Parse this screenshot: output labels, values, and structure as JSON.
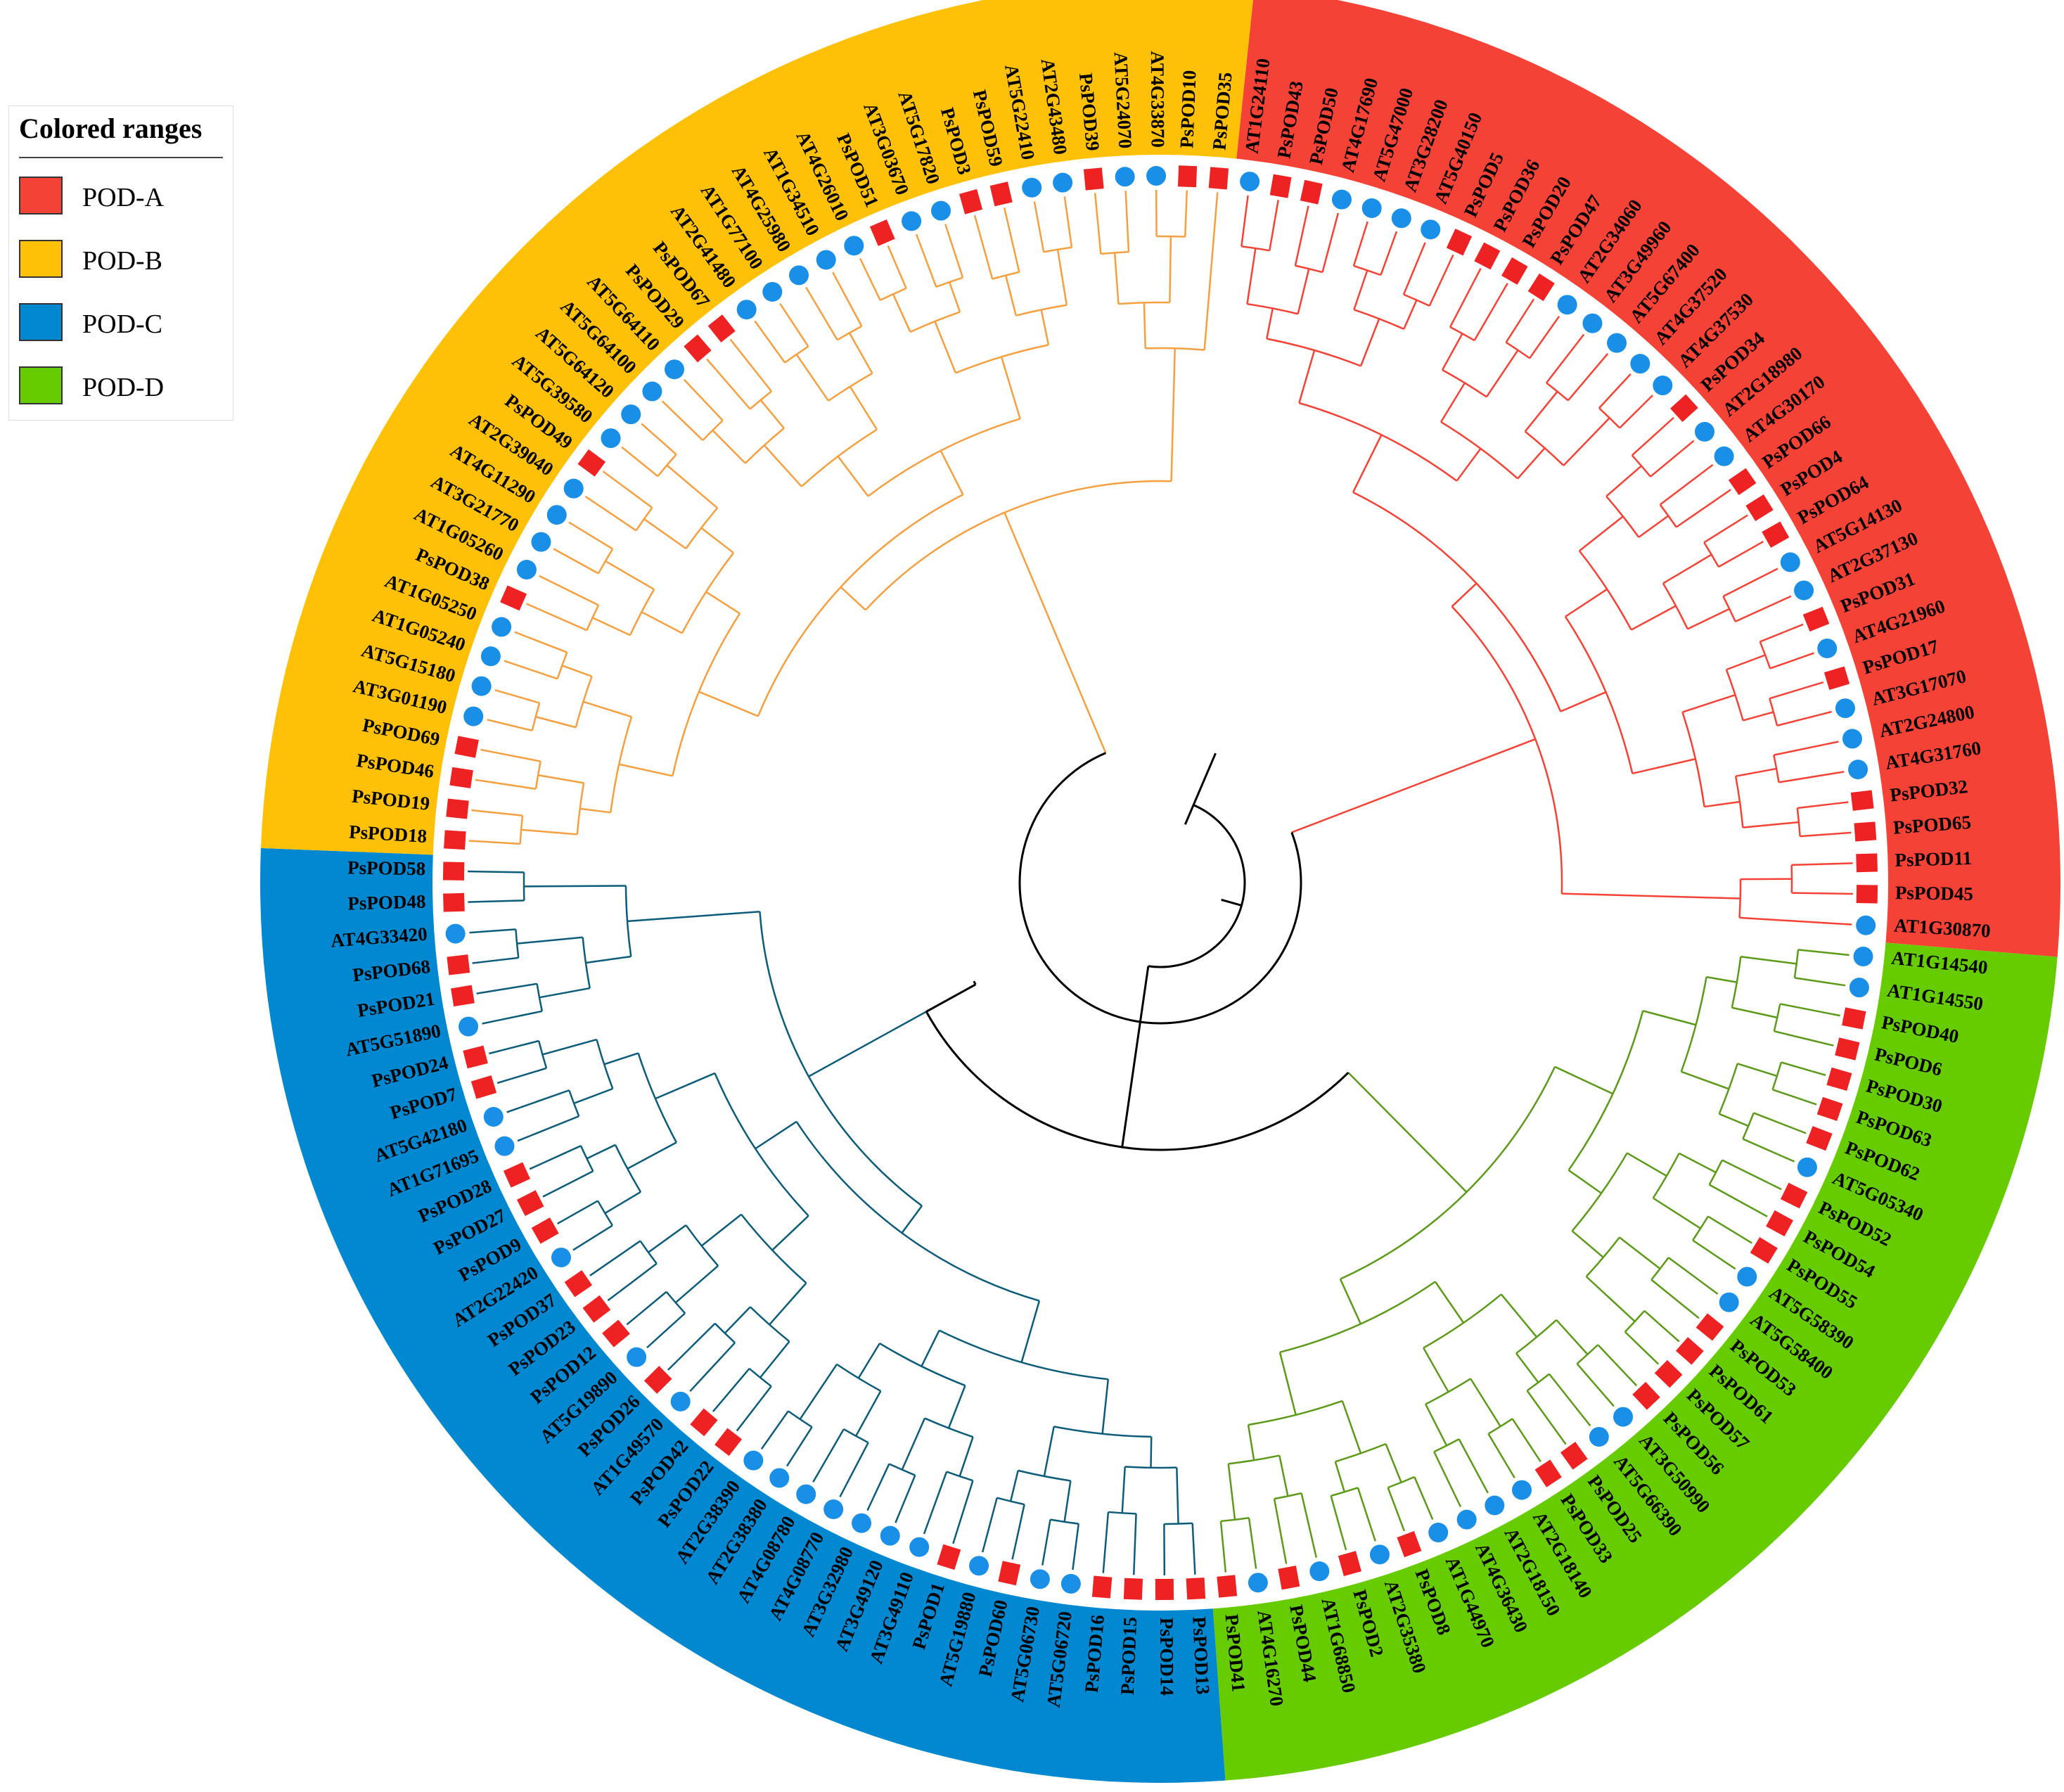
{
  "legend": {
    "title": "Colored ranges",
    "items": [
      {
        "label": "POD-A",
        "color": "#f44336"
      },
      {
        "label": "POD-B",
        "color": "#ffc107"
      },
      {
        "label": "POD-C",
        "color": "#0288d1"
      },
      {
        "label": "POD-D",
        "color": "#66cc00"
      }
    ]
  },
  "branch_colors": {
    "A": "#f44336",
    "B": "#f5a040",
    "C": "#0d5c7a",
    "D": "#5d9a1a",
    "backbone": "#000000"
  },
  "marker_colors": {
    "AT": "#1a8fe8",
    "Ps": "#ee2222"
  },
  "clades": [
    {
      "id": "A",
      "range": "POD-A",
      "leaves": [
        "AT1G24110",
        "PsPOD43",
        "PsPOD50",
        "AT4G17690",
        "AT5G47000",
        "AT3G28200",
        "AT5G40150",
        "PsPOD5",
        "PsPOD36",
        "PsPOD20",
        "PsPOD47",
        "AT2G34060",
        "AT3G49960",
        "AT5G67400",
        "AT4G37520",
        "AT4G37530",
        "PsPOD34",
        "AT2G18980",
        "AT4G30170",
        "PsPOD66",
        "PsPOD4",
        "PsPOD64",
        "AT5G14130",
        "AT2G37130",
        "PsPOD31",
        "AT4G21960",
        "PsPOD17",
        "AT3G17070",
        "AT2G24800",
        "AT4G31760",
        "PsPOD32",
        "PsPOD65",
        "PsPOD11",
        "PsPOD45",
        "AT1G30870"
      ]
    },
    {
      "id": "D",
      "range": "POD-D",
      "leaves": [
        "AT1G14540",
        "AT1G14550",
        "PsPOD40",
        "PsPOD6",
        "PsPOD30",
        "PsPOD63",
        "PsPOD62",
        "AT5G05340",
        "PsPOD52",
        "PsPOD54",
        "PsPOD55",
        "AT5G58390",
        "AT5G58400",
        "PsPOD53",
        "PsPOD61",
        "PsPOD57",
        "PsPOD56",
        "AT3G50990",
        "AT5G66390",
        "PsPOD25",
        "PsPOD33",
        "AT2G18140",
        "AT2G18150",
        "AT4G36430",
        "AT1G44970",
        "PsPOD8",
        "AT2G35380",
        "PsPOD2",
        "AT1G68850",
        "PsPOD44",
        "AT4G16270",
        "PsPOD41"
      ]
    },
    {
      "id": "C",
      "range": "POD-C",
      "leaves": [
        "PsPOD13",
        "PsPOD14",
        "PsPOD15",
        "PsPOD16",
        "AT5G06720",
        "AT5G06730",
        "PsPOD60",
        "AT5G19880",
        "PsPOD1",
        "AT3G49110",
        "AT3G49120",
        "AT3G32980",
        "AT4G08770",
        "AT4G08780",
        "AT2G38380",
        "AT2G38390",
        "PsPOD22",
        "PsPOD42",
        "AT1G49570",
        "PsPOD26",
        "AT5G19890",
        "PsPOD12",
        "PsPOD23",
        "PsPOD37",
        "AT2G22420",
        "PsPOD9",
        "PsPOD27",
        "PsPOD28",
        "AT1G71695",
        "AT5G42180",
        "PsPOD7",
        "PsPOD24",
        "AT5G51890",
        "PsPOD21",
        "PsPOD68",
        "AT4G33420",
        "PsPOD48",
        "PsPOD58"
      ]
    },
    {
      "id": "B",
      "range": "POD-B",
      "leaves": [
        "PsPOD18",
        "PsPOD19",
        "PsPOD46",
        "PsPOD69",
        "AT3G01190",
        "AT5G15180",
        "AT1G05240",
        "AT1G05250",
        "PsPOD38",
        "AT1G05260",
        "AT3G21770",
        "AT4G11290",
        "AT2G39040",
        "PsPOD49",
        "AT5G39580",
        "AT5G64120",
        "AT5G64100",
        "AT5G64110",
        "PsPOD29",
        "PsPOD67",
        "AT2G41480",
        "AT1G77100",
        "AT4G25980",
        "AT1G34510",
        "AT4G26010",
        "PsPOD51",
        "AT3G03670",
        "AT5G17820",
        "PsPOD3",
        "PsPOD59",
        "AT5G22410",
        "AT2G43480",
        "PsPOD39",
        "AT5G24070",
        "AT4G33870",
        "PsPOD10",
        "PsPOD35"
      ]
    }
  ]
}
